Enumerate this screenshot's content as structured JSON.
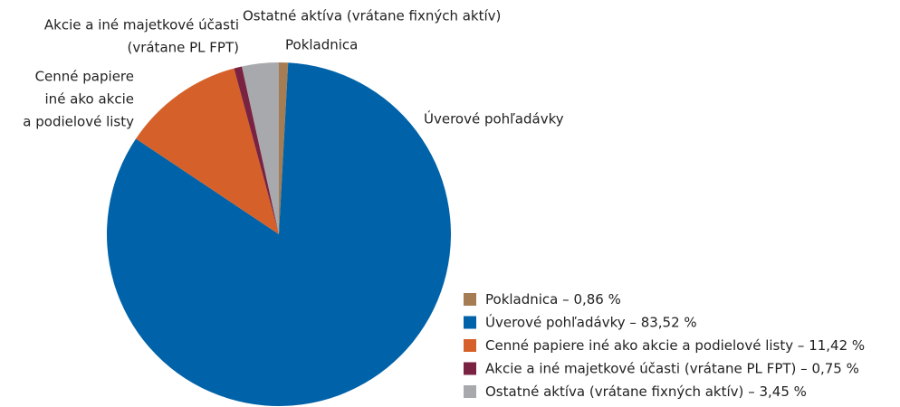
{
  "chart_data": {
    "type": "pie",
    "categories": [
      "Pokladnica",
      "Úverové pohľadávky",
      "Cenné papiere iné ako akcie a podielové listy",
      "Akcie a iné majetkové účasti (vrátane PL FPT)",
      "Ostatné aktíva (vrátane fixných aktív)"
    ],
    "values": [
      0.86,
      83.52,
      11.42,
      0.75,
      3.45
    ],
    "value_labels": [
      "0,86 %",
      "83,52 %",
      "11,42 %",
      "0,75 %",
      "3,45 %"
    ],
    "colors": [
      "#a67c52",
      "#0062a8",
      "#d6602a",
      "#7a2242",
      "#a7a9ac"
    ],
    "labels": [
      [
        "Pokladnica"
      ],
      [
        "Úverové pohľadávky"
      ],
      [
        "Cenné papiere",
        "iné ako akcie",
        "a podielové listy"
      ],
      [
        "Akcie a iné majetkové účasti",
        "(vrátane PL FPT)"
      ],
      [
        "Ostatné aktíva (vrátane fixných aktív)"
      ]
    ],
    "legend_separator": "–",
    "legend": "bottom-right"
  }
}
